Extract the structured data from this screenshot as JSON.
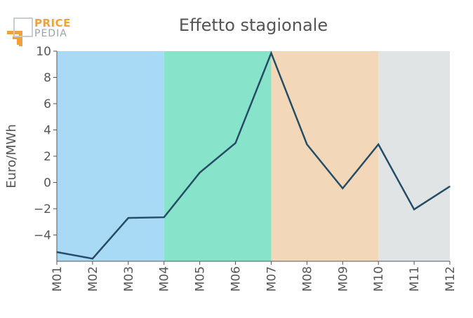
{
  "logo": {
    "line1": "PRICE",
    "line2": "PEDIA"
  },
  "colors": {
    "line": "#264d66",
    "bands": [
      "#a9daf5",
      "#88e3cb",
      "#f2d8b8",
      "#e1e4e5"
    ],
    "text": "#555555",
    "logo_orange": "#f0a23a",
    "logo_gray": "#9aa3ad"
  },
  "chart_data": {
    "type": "line",
    "title": "Effetto stagionale",
    "xlabel": "",
    "ylabel": "Euro/MWh",
    "categories": [
      "M01",
      "M02",
      "M03",
      "M04",
      "M05",
      "M06",
      "M07",
      "M08",
      "M09",
      "M10",
      "M11",
      "M12"
    ],
    "series": [
      {
        "values": [
          -5.3,
          -5.8,
          -2.7,
          -2.65,
          0.75,
          3.0,
          9.85,
          2.9,
          -0.45,
          2.9,
          -2.05,
          -0.3
        ]
      }
    ],
    "ylim": [
      -6,
      10
    ],
    "yticks": [
      10,
      8,
      6,
      4,
      2,
      0,
      -2,
      -4
    ],
    "ytick_labels": [
      "10",
      "8",
      "6",
      "4",
      "2",
      "0",
      "−2",
      "−4"
    ],
    "bands": [
      {
        "from": "M01",
        "to": "M04"
      },
      {
        "from": "M04",
        "to": "M07"
      },
      {
        "from": "M07",
        "to": "M10"
      },
      {
        "from": "M10",
        "to": "M12"
      }
    ],
    "grid": false,
    "legend": "none"
  }
}
